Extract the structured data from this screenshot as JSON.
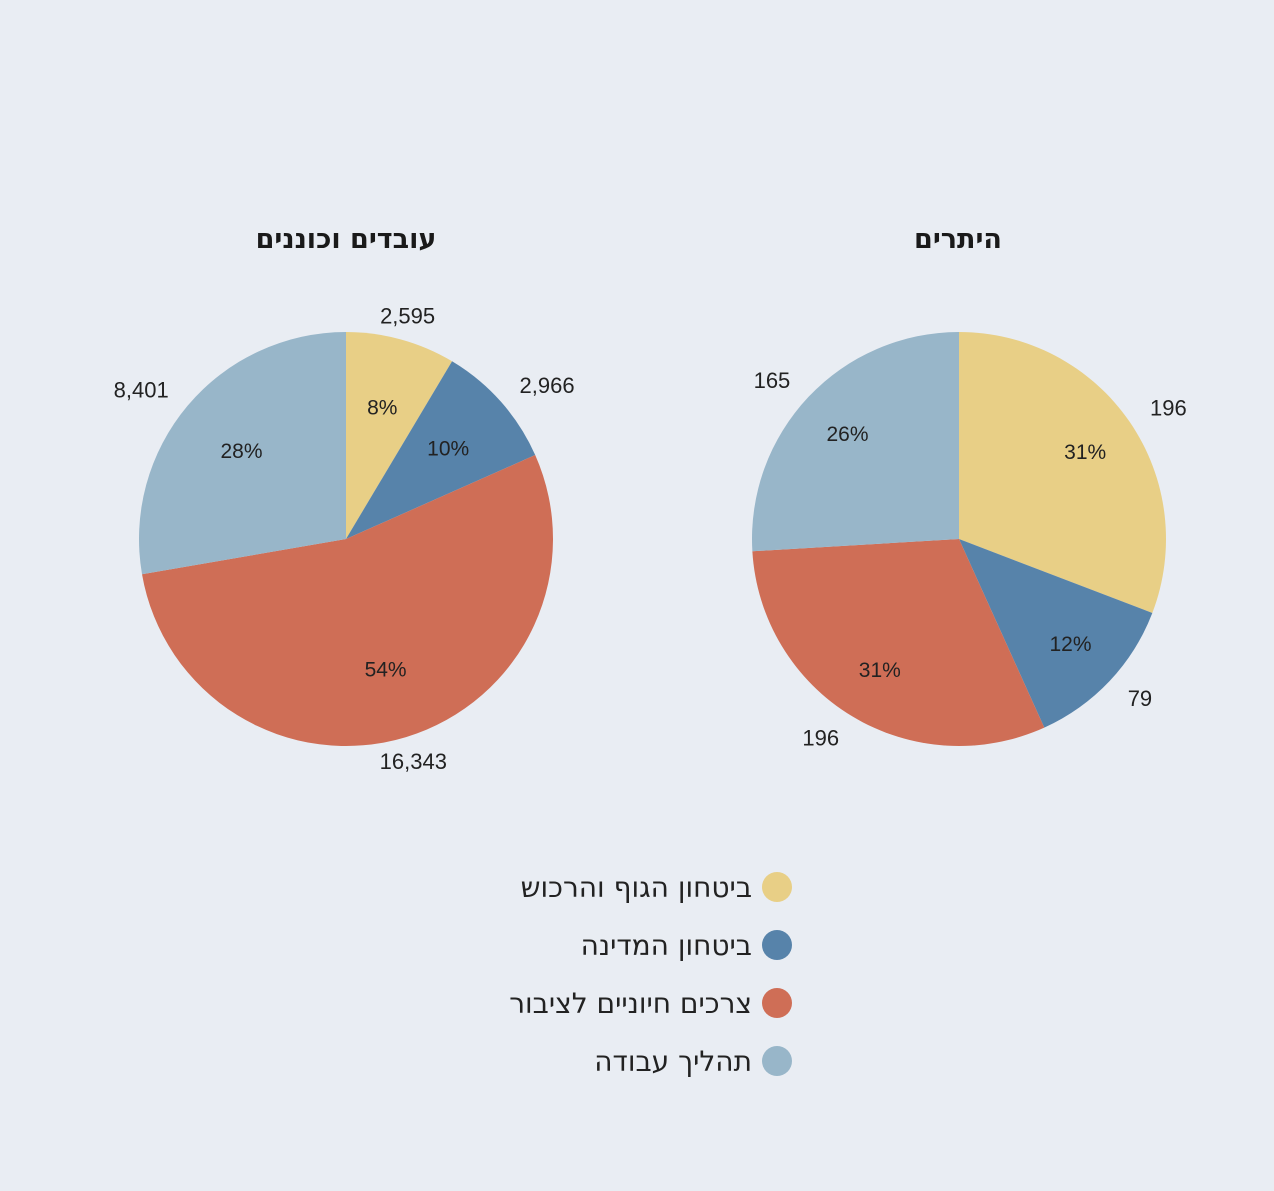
{
  "categories": [
    "ביטחון הגוף והרכוש",
    "ביטחון המדינה",
    "צרכים חיוניים לציבור",
    "תהליך עבודה"
  ],
  "colors": [
    "#e8cf86",
    "#5783aa",
    "#cf6e56",
    "#98b6c9"
  ],
  "chart_data": [
    {
      "type": "pie",
      "title": "עובדים וכוננים",
      "categories": [
        "ביטחון הגוף והרכוש",
        "ביטחון המדינה",
        "צרכים חיוניים לציבור",
        "תהליך עבודה"
      ],
      "values": [
        2595,
        2966,
        16343,
        8401
      ],
      "value_labels": [
        "2,595",
        "2,966",
        "16,343",
        "8,401"
      ],
      "percent_labels": [
        "8%",
        "10%",
        "54%",
        "28%"
      ],
      "legend": "bottom"
    },
    {
      "type": "pie",
      "title": "היתרים",
      "categories": [
        "ביטחון הגוף והרכוש",
        "ביטחון המדינה",
        "צרכים חיוניים לציבור",
        "תהליך עבודה"
      ],
      "values": [
        196,
        79,
        196,
        165
      ],
      "value_labels": [
        "196",
        "79",
        "196",
        "165"
      ],
      "percent_labels": [
        "31%",
        "12%",
        "31%",
        "26%"
      ],
      "legend": "bottom"
    }
  ]
}
